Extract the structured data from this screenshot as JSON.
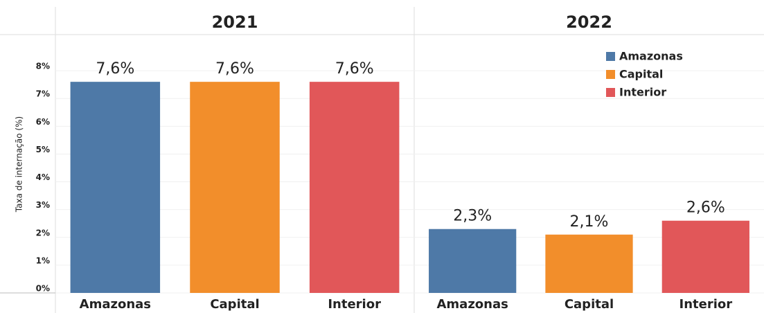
{
  "chart_data": {
    "type": "bar",
    "ylabel": "Taxa de internação (%)",
    "categories": [
      "2021",
      "2022"
    ],
    "series": [
      {
        "name": "Amazonas",
        "color": "#4e79a7",
        "values": [
          7.6,
          2.3
        ],
        "value_labels": [
          "7,6%",
          "2,3%"
        ]
      },
      {
        "name": "Capital",
        "color": "#f28e2b",
        "values": [
          7.6,
          2.1
        ],
        "value_labels": [
          "7,6%",
          "2,1%"
        ]
      },
      {
        "name": "Interior",
        "color": "#e15759",
        "values": [
          7.6,
          2.6
        ],
        "value_labels": [
          "7,6%",
          "2,6%"
        ]
      }
    ],
    "ylim": [
      0,
      9
    ],
    "yticks": [
      {
        "value": 0,
        "label": "0%"
      },
      {
        "value": 1,
        "label": "1%"
      },
      {
        "value": 2,
        "label": "2%"
      },
      {
        "value": 3,
        "label": "3%"
      },
      {
        "value": 4,
        "label": "4%"
      },
      {
        "value": 5,
        "label": "5%"
      },
      {
        "value": 6,
        "label": "6%"
      },
      {
        "value": 7,
        "label": "7%"
      },
      {
        "value": 8,
        "label": "8%"
      }
    ],
    "grid": true,
    "legend": "top-right"
  }
}
